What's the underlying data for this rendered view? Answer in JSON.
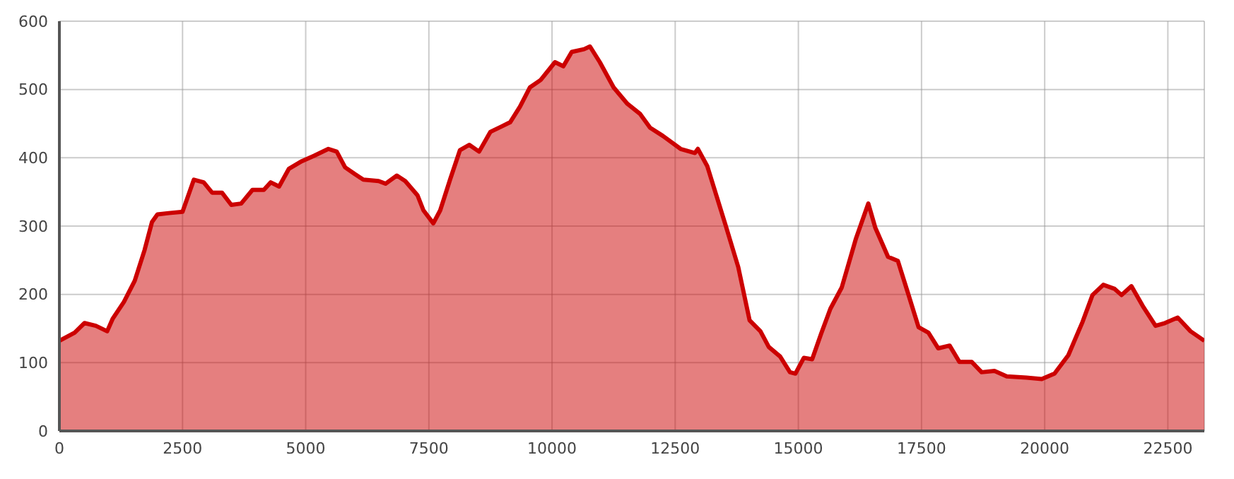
{
  "chart_data": {
    "type": "area",
    "x": [
      0,
      310,
      510,
      740,
      970,
      1080,
      1310,
      1530,
      1730,
      1880,
      1990,
      2220,
      2500,
      2730,
      2930,
      3100,
      3300,
      3490,
      3690,
      3920,
      4150,
      4290,
      4460,
      4660,
      4920,
      5170,
      5460,
      5630,
      5800,
      6000,
      6170,
      6480,
      6620,
      6850,
      7020,
      7270,
      7390,
      7590,
      7730,
      7930,
      8130,
      8320,
      8520,
      8750,
      8980,
      9150,
      9350,
      9550,
      9770,
      10060,
      10230,
      10400,
      10650,
      10770,
      10970,
      11250,
      11530,
      11790,
      11990,
      12250,
      12610,
      12900,
      12960,
      13150,
      13520,
      13780,
      14010,
      14230,
      14400,
      14630,
      14830,
      14940,
      15110,
      15280,
      15460,
      15650,
      15880,
      16170,
      16420,
      16560,
      16820,
      17020,
      17220,
      17440,
      17640,
      17840,
      18070,
      18270,
      18520,
      18720,
      18980,
      19230,
      19630,
      19940,
      20200,
      20480,
      20770,
      20970,
      21190,
      21420,
      21560,
      21760,
      21990,
      22250,
      22440,
      22700,
      22960,
      23240
    ],
    "series": [
      {
        "color": "#cc0000",
        "values": [
          132,
          144,
          158,
          154,
          146,
          164,
          189,
          220,
          265,
          306,
          317,
          319,
          321,
          368,
          364,
          349,
          349,
          331,
          333,
          353,
          353,
          364,
          358,
          384,
          395,
          403,
          413,
          409,
          386,
          376,
          368,
          366,
          362,
          374,
          366,
          345,
          323,
          304,
          323,
          368,
          411,
          419,
          409,
          438,
          446,
          452,
          475,
          503,
          514,
          540,
          534,
          555,
          559,
          563,
          540,
          503,
          479,
          464,
          444,
          432,
          413,
          407,
          413,
          388,
          302,
          240,
          162,
          146,
          123,
          109,
          86,
          84,
          107,
          105,
          142,
          179,
          210,
          282,
          333,
          298,
          255,
          249,
          203,
          152,
          144,
          121,
          125,
          101,
          101,
          86,
          88,
          80,
          78,
          76,
          84,
          111,
          160,
          199,
          214,
          208,
          199,
          212,
          183,
          154,
          158,
          166,
          146,
          132
        ]
      }
    ],
    "xlim": [
      0,
      23240
    ],
    "xticks": [
      0,
      2500,
      5000,
      7500,
      10000,
      12500,
      15000,
      17500,
      20000,
      22500
    ],
    "ylim": [
      0,
      600
    ],
    "yticks": [
      0,
      100,
      200,
      300,
      400,
      500,
      600
    ],
    "grid": true
  }
}
